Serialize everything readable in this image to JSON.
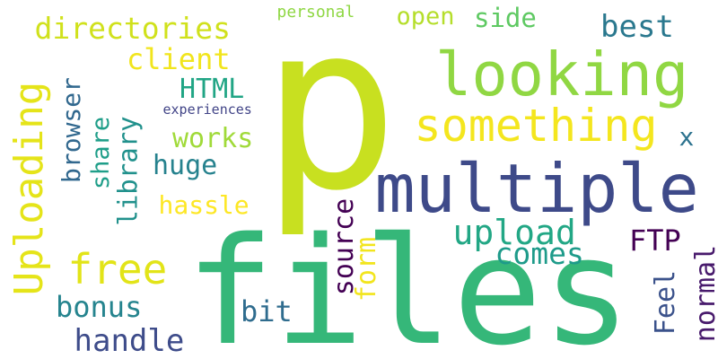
{
  "words": [
    {
      "text": "p",
      "color": "#c8e020"
    },
    {
      "text": "files",
      "color": "#35b779"
    },
    {
      "text": "multiple",
      "color": "#3e4a89"
    },
    {
      "text": "looking",
      "color": "#90d743"
    },
    {
      "text": "something",
      "color": "#f4e61e"
    },
    {
      "text": "Uploading",
      "color": "#e5e419"
    },
    {
      "text": "directories",
      "color": "#d0e11c"
    },
    {
      "text": "open",
      "color": "#b5de2b"
    },
    {
      "text": "side",
      "color": "#5ec962"
    },
    {
      "text": "best",
      "color": "#2a788e"
    },
    {
      "text": "personal",
      "color": "#8fd744"
    },
    {
      "text": "client",
      "color": "#f1e51d"
    },
    {
      "text": "HTML",
      "color": "#21a585"
    },
    {
      "text": "browser",
      "color": "#31688e"
    },
    {
      "text": "library",
      "color": "#21918c"
    },
    {
      "text": "share",
      "color": "#1f9e89"
    },
    {
      "text": "experiences",
      "color": "#414487"
    },
    {
      "text": "works",
      "color": "#a0da39"
    },
    {
      "text": "x",
      "color": "#2c728e"
    },
    {
      "text": "huge",
      "color": "#26828e"
    },
    {
      "text": "hassle",
      "color": "#fde725"
    },
    {
      "text": "source",
      "color": "#440154"
    },
    {
      "text": "free",
      "color": "#e2e418"
    },
    {
      "text": "upload",
      "color": "#22a785"
    },
    {
      "text": "comes",
      "color": "#1e9b8a"
    },
    {
      "text": "FTP",
      "color": "#440154"
    },
    {
      "text": "form",
      "color": "#f2e51d"
    },
    {
      "text": "Feel",
      "color": "#3b528b"
    },
    {
      "text": "normal",
      "color": "#481a6c"
    },
    {
      "text": "bonus",
      "color": "#25848e"
    },
    {
      "text": "bit",
      "color": "#2f6c8e"
    },
    {
      "text": "handle",
      "color": "#3e4c8a"
    }
  ]
}
